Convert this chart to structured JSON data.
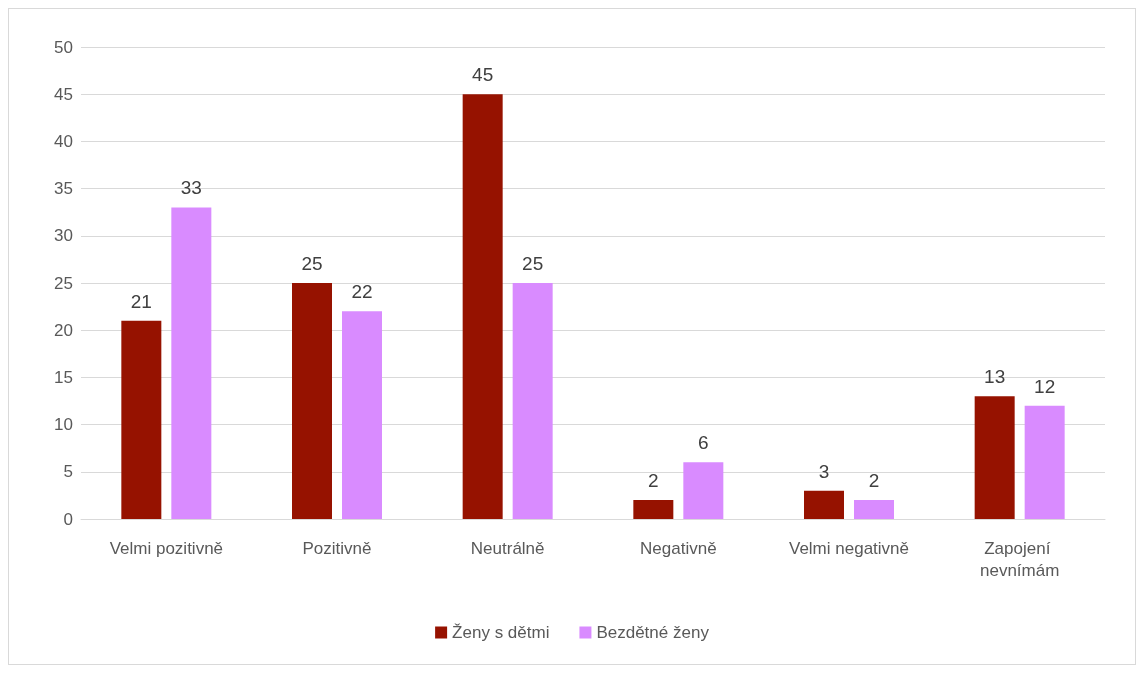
{
  "chart_data": {
    "type": "bar",
    "categories": [
      "Velmi pozitivně",
      "Pozitivně",
      "Neutrálně",
      "Negativně",
      "Velmi negativně",
      "Zapojení nevnímám"
    ],
    "series": [
      {
        "name": "Ženy s dětmi",
        "color": "#961200",
        "values": [
          21,
          25,
          45,
          2,
          3,
          13
        ]
      },
      {
        "name": "Bezdětné ženy",
        "color": "#d98bff",
        "values": [
          33,
          22,
          25,
          6,
          2,
          12
        ]
      }
    ],
    "ylim": [
      0,
      50
    ],
    "yticks": [
      0,
      5,
      10,
      15,
      20,
      25,
      30,
      35,
      40,
      45,
      50
    ],
    "grid": "y",
    "legend": "bottom",
    "data_labels": true
  }
}
